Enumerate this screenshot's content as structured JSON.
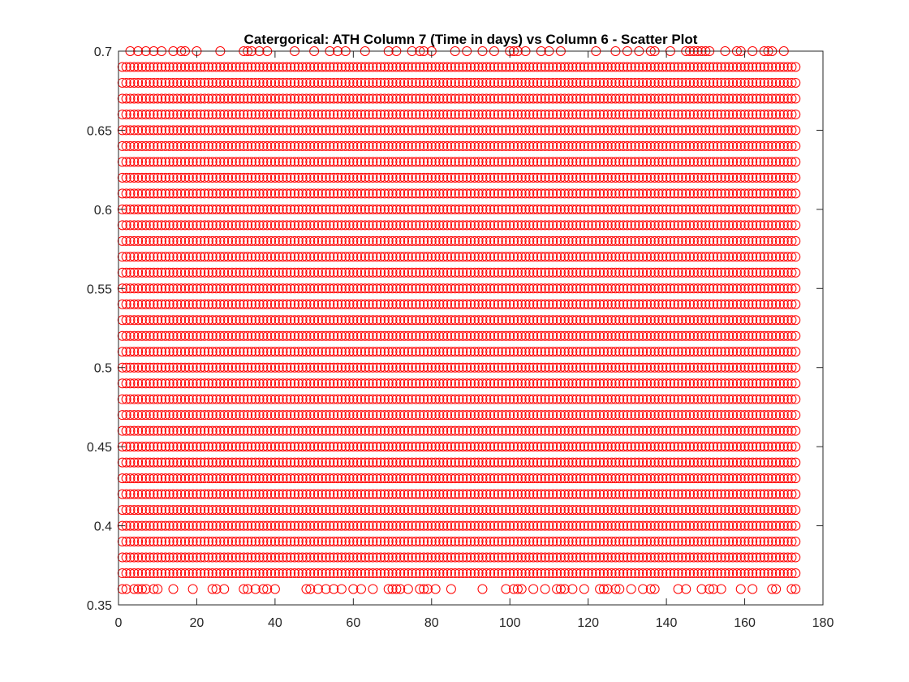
{
  "chart_data": {
    "type": "scatter",
    "title": "Catergorical: ATH Column 7 (Time in days) vs Column 6 - Scatter Plot",
    "xlabel": "",
    "ylabel": "",
    "xlim": [
      0,
      180
    ],
    "ylim": [
      0.35,
      0.7
    ],
    "xticks": [
      "0",
      "20",
      "40",
      "60",
      "80",
      "100",
      "120",
      "140",
      "160",
      "180"
    ],
    "yticks": [
      "0.35",
      "0.4",
      "0.45",
      "0.5",
      "0.55",
      "0.6",
      "0.65",
      "0.7"
    ],
    "grid": false,
    "marker": "circle-open",
    "marker_color": "#ff0000",
    "series": [
      {
        "x_range": [
          1,
          173
        ],
        "x_step": 1,
        "y_values": [
          0.37,
          0.38,
          0.39,
          0.4,
          0.41,
          0.42,
          0.43,
          0.44,
          0.45,
          0.46,
          0.47,
          0.48,
          0.49,
          0.5,
          0.51,
          0.52,
          0.53,
          0.54,
          0.55,
          0.56,
          0.57,
          0.58,
          0.59,
          0.6,
          0.61,
          0.62,
          0.63,
          0.64,
          0.65,
          0.66,
          0.67,
          0.68,
          0.69
        ]
      },
      {
        "y": 0.36,
        "x": [
          1,
          2,
          4,
          5,
          6,
          7,
          9,
          10,
          14,
          19,
          24,
          25,
          27,
          32,
          33,
          35,
          37,
          38,
          40,
          48,
          49,
          51,
          53,
          55,
          57,
          60,
          62,
          65,
          69,
          70,
          71,
          72,
          74,
          77,
          78,
          79,
          81,
          85,
          93,
          99,
          101,
          102,
          103,
          106,
          109,
          112,
          113,
          114,
          116,
          119,
          123,
          124,
          125,
          127,
          128,
          131,
          134,
          136,
          137,
          143,
          145,
          149,
          151,
          152,
          154,
          159,
          162,
          167,
          168,
          172,
          173
        ]
      },
      {
        "y": 0.7,
        "x": [
          3,
          5,
          7,
          9,
          11,
          14,
          16,
          17,
          20,
          26,
          32,
          33,
          34,
          36,
          38,
          45,
          50,
          54,
          56,
          58,
          63,
          69,
          71,
          75,
          77,
          78,
          80,
          86,
          89,
          93,
          96,
          100,
          101,
          102,
          104,
          108,
          110,
          113,
          122,
          127,
          130,
          133,
          136,
          137,
          141,
          145,
          146,
          147,
          148,
          149,
          150,
          151,
          155,
          158,
          159,
          162,
          165,
          166,
          167,
          170
        ]
      }
    ]
  }
}
